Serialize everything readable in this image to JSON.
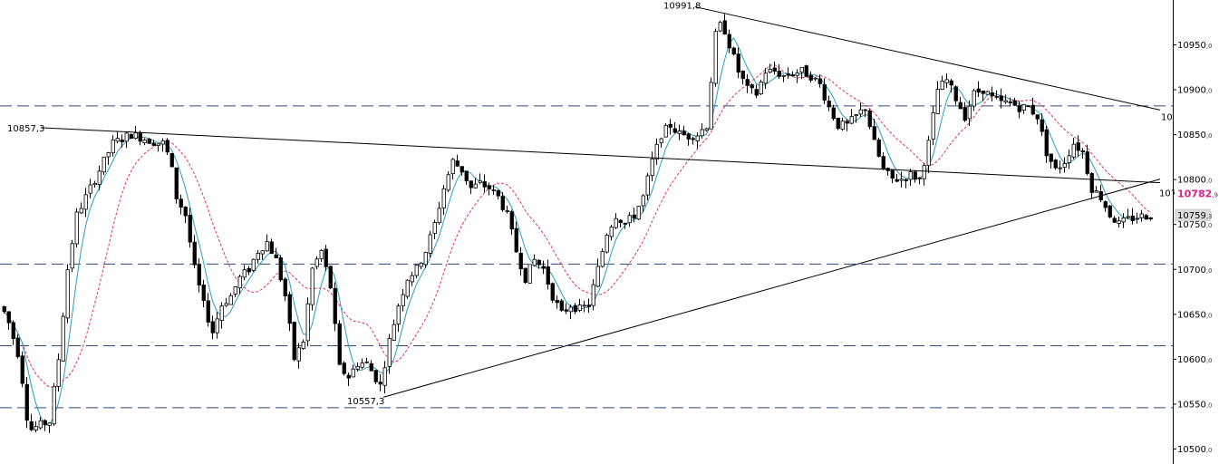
{
  "chart_data": {
    "type": "candlestick",
    "ylim": [
      10495,
      11005
    ],
    "y_ticks": [
      {
        "value": 10950,
        "int": "10950",
        "dec": ",0"
      },
      {
        "value": 10900,
        "int": "10900",
        "dec": ",0"
      },
      {
        "value": 10850,
        "int": "10850",
        "dec": ",0"
      },
      {
        "value": 10800,
        "int": "10800",
        "dec": ",0"
      },
      {
        "value": 10750,
        "int": "10750",
        "dec": ",0"
      },
      {
        "value": 10700,
        "int": "10700",
        "dec": ",0"
      },
      {
        "value": 10650,
        "int": "10650",
        "dec": ",0"
      },
      {
        "value": 10600,
        "int": "10600",
        "dec": ",0"
      },
      {
        "value": 10550,
        "int": "10550",
        "dec": ",0"
      },
      {
        "value": 10500,
        "int": "10500",
        "dec": ",0"
      }
    ],
    "horizontal_levels": [
      10882,
      10706,
      10615,
      10546
    ],
    "current_price": {
      "int": "10782",
      "dec": ",9",
      "value": 10782.9,
      "color": "#e0208a"
    },
    "last_price": {
      "int": "10759",
      "dec": ",3",
      "value": 10759.3
    },
    "cut_labels": [
      "10",
      "107"
    ],
    "annotations": [
      {
        "text": "10991,8",
        "value": 10991.8
      },
      {
        "text": "10857,3",
        "value": 10857.3
      },
      {
        "text": "10557,3",
        "value": 10557.3
      }
    ],
    "trendlines": [
      {
        "name": "upper",
        "points": [
          [
            767,
            10991.8
          ],
          [
            1280,
            10877
          ]
        ]
      },
      {
        "name": "middle",
        "points": [
          [
            45,
            10857.3
          ],
          [
            1280,
            10796
          ]
        ]
      },
      {
        "name": "lower",
        "points": [
          [
            423,
            10557.3
          ],
          [
            1280,
            10800
          ]
        ]
      }
    ],
    "anchors": [
      [
        0,
        10660
      ],
      [
        10,
        10650
      ],
      [
        25,
        10600
      ],
      [
        35,
        10520
      ],
      [
        45,
        10525
      ],
      [
        58,
        10530
      ],
      [
        68,
        10600
      ],
      [
        78,
        10700
      ],
      [
        88,
        10760
      ],
      [
        98,
        10780
      ],
      [
        108,
        10800
      ],
      [
        118,
        10820
      ],
      [
        128,
        10840
      ],
      [
        138,
        10845
      ],
      [
        148,
        10850
      ],
      [
        163,
        10845
      ],
      [
        178,
        10840
      ],
      [
        185,
        10840
      ],
      [
        193,
        10810
      ],
      [
        198,
        10780
      ],
      [
        208,
        10760
      ],
      [
        218,
        10700
      ],
      [
        228,
        10660
      ],
      [
        238,
        10630
      ],
      [
        248,
        10660
      ],
      [
        258,
        10670
      ],
      [
        268,
        10690
      ],
      [
        278,
        10700
      ],
      [
        288,
        10720
      ],
      [
        298,
        10730
      ],
      [
        308,
        10710
      ],
      [
        318,
        10670
      ],
      [
        328,
        10600
      ],
      [
        338,
        10620
      ],
      [
        348,
        10700
      ],
      [
        358,
        10720
      ],
      [
        368,
        10680
      ],
      [
        378,
        10590
      ],
      [
        388,
        10580
      ],
      [
        398,
        10595
      ],
      [
        408,
        10595
      ],
      [
        423,
        10570
      ],
      [
        433,
        10620
      ],
      [
        443,
        10660
      ],
      [
        453,
        10690
      ],
      [
        463,
        10700
      ],
      [
        473,
        10720
      ],
      [
        483,
        10750
      ],
      [
        493,
        10790
      ],
      [
        503,
        10820
      ],
      [
        513,
        10810
      ],
      [
        523,
        10790
      ],
      [
        533,
        10795
      ],
      [
        543,
        10790
      ],
      [
        553,
        10780
      ],
      [
        563,
        10760
      ],
      [
        573,
        10720
      ],
      [
        583,
        10690
      ],
      [
        593,
        10710
      ],
      [
        603,
        10700
      ],
      [
        613,
        10670
      ],
      [
        623,
        10650
      ],
      [
        633,
        10660
      ],
      [
        643,
        10655
      ],
      [
        653,
        10660
      ],
      [
        663,
        10700
      ],
      [
        673,
        10740
      ],
      [
        683,
        10760
      ],
      [
        693,
        10750
      ],
      [
        703,
        10760
      ],
      [
        713,
        10780
      ],
      [
        723,
        10820
      ],
      [
        733,
        10850
      ],
      [
        743,
        10860
      ],
      [
        753,
        10850
      ],
      [
        763,
        10848
      ],
      [
        773,
        10850
      ],
      [
        783,
        10860
      ],
      [
        793,
        10960
      ],
      [
        800,
        10975
      ],
      [
        808,
        10950
      ],
      [
        818,
        10920
      ],
      [
        828,
        10900
      ],
      [
        838,
        10895
      ],
      [
        848,
        10920
      ],
      [
        858,
        10920
      ],
      [
        868,
        10915
      ],
      [
        878,
        10918
      ],
      [
        888,
        10920
      ],
      [
        898,
        10915
      ],
      [
        908,
        10905
      ],
      [
        918,
        10880
      ],
      [
        928,
        10860
      ],
      [
        938,
        10860
      ],
      [
        948,
        10870
      ],
      [
        958,
        10880
      ],
      [
        968,
        10840
      ],
      [
        978,
        10810
      ],
      [
        988,
        10800
      ],
      [
        998,
        10800
      ],
      [
        1008,
        10805
      ],
      [
        1018,
        10800
      ],
      [
        1028,
        10840
      ],
      [
        1038,
        10900
      ],
      [
        1048,
        10910
      ],
      [
        1058,
        10890
      ],
      [
        1068,
        10870
      ],
      [
        1078,
        10895
      ],
      [
        1088,
        10900
      ],
      [
        1098,
        10890
      ],
      [
        1108,
        10885
      ],
      [
        1118,
        10885
      ],
      [
        1128,
        10880
      ],
      [
        1138,
        10880
      ],
      [
        1148,
        10870
      ],
      [
        1158,
        10830
      ],
      [
        1168,
        10810
      ],
      [
        1178,
        10820
      ],
      [
        1188,
        10840
      ],
      [
        1198,
        10830
      ],
      [
        1208,
        10790
      ],
      [
        1218,
        10780
      ],
      [
        1228,
        10760
      ],
      [
        1238,
        10750
      ],
      [
        1248,
        10755
      ],
      [
        1258,
        10758
      ],
      [
        1268,
        10759.3
      ]
    ],
    "series_colors": {
      "candle_up": "#ffffff",
      "candle_down": "#000000",
      "fast_ma": "#2a9bc0",
      "slow_ma": "#e03070",
      "levels": "#2d4a7a",
      "trendlines": "#000000"
    }
  }
}
